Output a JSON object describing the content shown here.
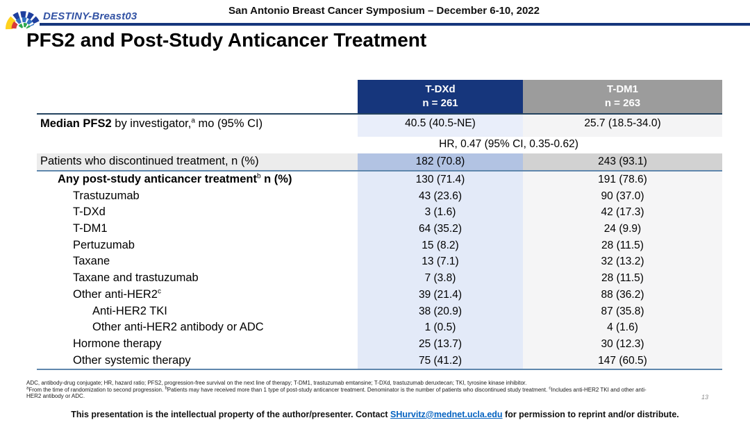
{
  "colors": {
    "navy": "#16367c",
    "brand_blue": "#3353a4",
    "header_gray": "#9c9c9c",
    "cell_blue_light": "#e9eefa",
    "cell_gray_light": "#f4f4f5",
    "col_blue": "#e3eaf8",
    "col_gray": "#f5f5f6",
    "hl_blue": "#b2c3e3",
    "hl_gray": "#d2d2d2",
    "line_blue": "#5f87ad"
  },
  "header": {
    "brand": "DESTINY-Breast03",
    "symposium": "San Antonio Breast Cancer Symposium – December 6-10, 2022"
  },
  "title": "PFS2 and Post-Study Anticancer Treatment",
  "table": {
    "columns": [
      {
        "line1": "T-DXd",
        "line2": "n = 261"
      },
      {
        "line1": "T-DM1",
        "line2": "n = 263"
      }
    ],
    "rows": [
      {
        "style": "median",
        "indent": 0,
        "label": [
          {
            "t": "Median PFS2",
            "b": true
          },
          {
            "t": " by investigator,"
          },
          {
            "t": "a",
            "sup": true
          },
          {
            "t": " mo (95% CI)"
          }
        ],
        "tdxd": "40.5 (40.5-NE)",
        "tdm1": "25.7 (18.5-34.0)"
      },
      {
        "style": "span",
        "text": "HR, 0.47 (95% CI, 0.35-0.62)"
      },
      {
        "style": "highlight",
        "indent": 0,
        "label": [
          {
            "t": "Patients who discontinued treatment, n (%)"
          }
        ],
        "tdxd": "182 (70.8)",
        "tdm1": "243 (93.1)"
      },
      {
        "style": "body",
        "indent": 1,
        "bold": true,
        "label": [
          {
            "t": "Any post-study anticancer treatment",
            "b": true
          },
          {
            "t": "b",
            "sup": true
          },
          {
            "t": " n (%)",
            "b": true
          }
        ],
        "tdxd": "130 (71.4)",
        "tdm1": "191 (78.6)"
      },
      {
        "style": "body",
        "indent": 2,
        "label": [
          {
            "t": "Trastuzumab"
          }
        ],
        "tdxd": "43 (23.6)",
        "tdm1": "90 (37.0)"
      },
      {
        "style": "body",
        "indent": 2,
        "label": [
          {
            "t": "T-DXd"
          }
        ],
        "tdxd": "3 (1.6)",
        "tdm1": "42 (17.3)"
      },
      {
        "style": "body",
        "indent": 2,
        "label": [
          {
            "t": "T-DM1"
          }
        ],
        "tdxd": "64 (35.2)",
        "tdm1": "24 (9.9)"
      },
      {
        "style": "body",
        "indent": 2,
        "label": [
          {
            "t": "Pertuzumab"
          }
        ],
        "tdxd": "15 (8.2)",
        "tdm1": "28 (11.5)"
      },
      {
        "style": "body",
        "indent": 2,
        "label": [
          {
            "t": "Taxane"
          }
        ],
        "tdxd": "13 (7.1)",
        "tdm1": "32 (13.2)"
      },
      {
        "style": "body",
        "indent": 2,
        "label": [
          {
            "t": "Taxane and trastuzumab"
          }
        ],
        "tdxd": "7 (3.8)",
        "tdm1": "28 (11.5)"
      },
      {
        "style": "body",
        "indent": 2,
        "label": [
          {
            "t": "Other anti-HER2"
          },
          {
            "t": "c",
            "sup": true
          }
        ],
        "tdxd": "39 (21.4)",
        "tdm1": "88 (36.2)"
      },
      {
        "style": "body",
        "indent": 3,
        "label": [
          {
            "t": "Anti-HER2 TKI"
          }
        ],
        "tdxd": "38 (20.9)",
        "tdm1": "87 (35.8)"
      },
      {
        "style": "body",
        "indent": 3,
        "label": [
          {
            "t": "Other anti-HER2 antibody or ADC"
          }
        ],
        "tdxd": "1 (0.5)",
        "tdm1": "4 (1.6)"
      },
      {
        "style": "body",
        "indent": 2,
        "label": [
          {
            "t": "Hormone therapy"
          }
        ],
        "tdxd": "25 (13.7)",
        "tdm1": "30 (12.3)"
      },
      {
        "style": "body",
        "indent": 2,
        "label": [
          {
            "t": "Other systemic therapy"
          }
        ],
        "tdxd": "75 (41.2)",
        "tdm1": "147 (60.5)"
      }
    ]
  },
  "footnotes": [
    [
      {
        "t": "ADC, antibody-drug conjugate; HR, hazard ratio; PFS2, progression-free survival on the next line of therapy; T-DM1, trastuzumab emtansine; T-DXd, trastuzumab deruxtecan; TKI, tyrosine kinase inhibitor."
      }
    ],
    [
      {
        "t": "a",
        "sup": true
      },
      {
        "t": "From the time of randomization to second progression. "
      },
      {
        "t": "b",
        "sup": true
      },
      {
        "t": "Patients may have received more than 1 type of post-study anticancer treatment. Denominator is the number of patients who discontinued study treatment. "
      },
      {
        "t": "c",
        "sup": true
      },
      {
        "t": "Includes anti-HER2 TKI and other anti-"
      }
    ],
    [
      {
        "t": "HER2 antibody or ADC."
      }
    ]
  ],
  "page_number": "13",
  "footer": {
    "pre": "This presentation is the intellectual property of the author/presenter. Contact ",
    "link": "SHurvitz@mednet.ucla.edu",
    "post": " for permission to reprint and/or distribute."
  }
}
